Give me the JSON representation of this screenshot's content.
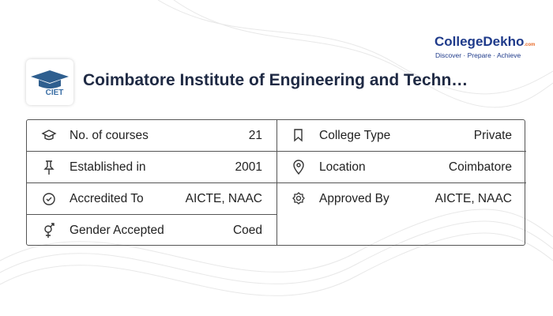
{
  "header": {
    "brand": "CollegeDekho",
    "brand_suffix": ".com",
    "tagline": "Discover · Prepare · Achieve",
    "logo_text": "CIET",
    "title": "Coimbatore Institute of Engineering and Techn…"
  },
  "table": {
    "left": [
      {
        "label": "No. of courses",
        "value": "21"
      },
      {
        "label": "Established in",
        "value": "2001"
      },
      {
        "label": "Accredited To",
        "value": "AICTE, NAAC"
      },
      {
        "label": "Gender Accepted",
        "value": "Coed"
      }
    ],
    "right": [
      {
        "label": "College Type",
        "value": "Private"
      },
      {
        "label": "Location",
        "value": "Coimbatore"
      },
      {
        "label": "Approved By",
        "value": "AICTE, NAAC"
      }
    ]
  }
}
